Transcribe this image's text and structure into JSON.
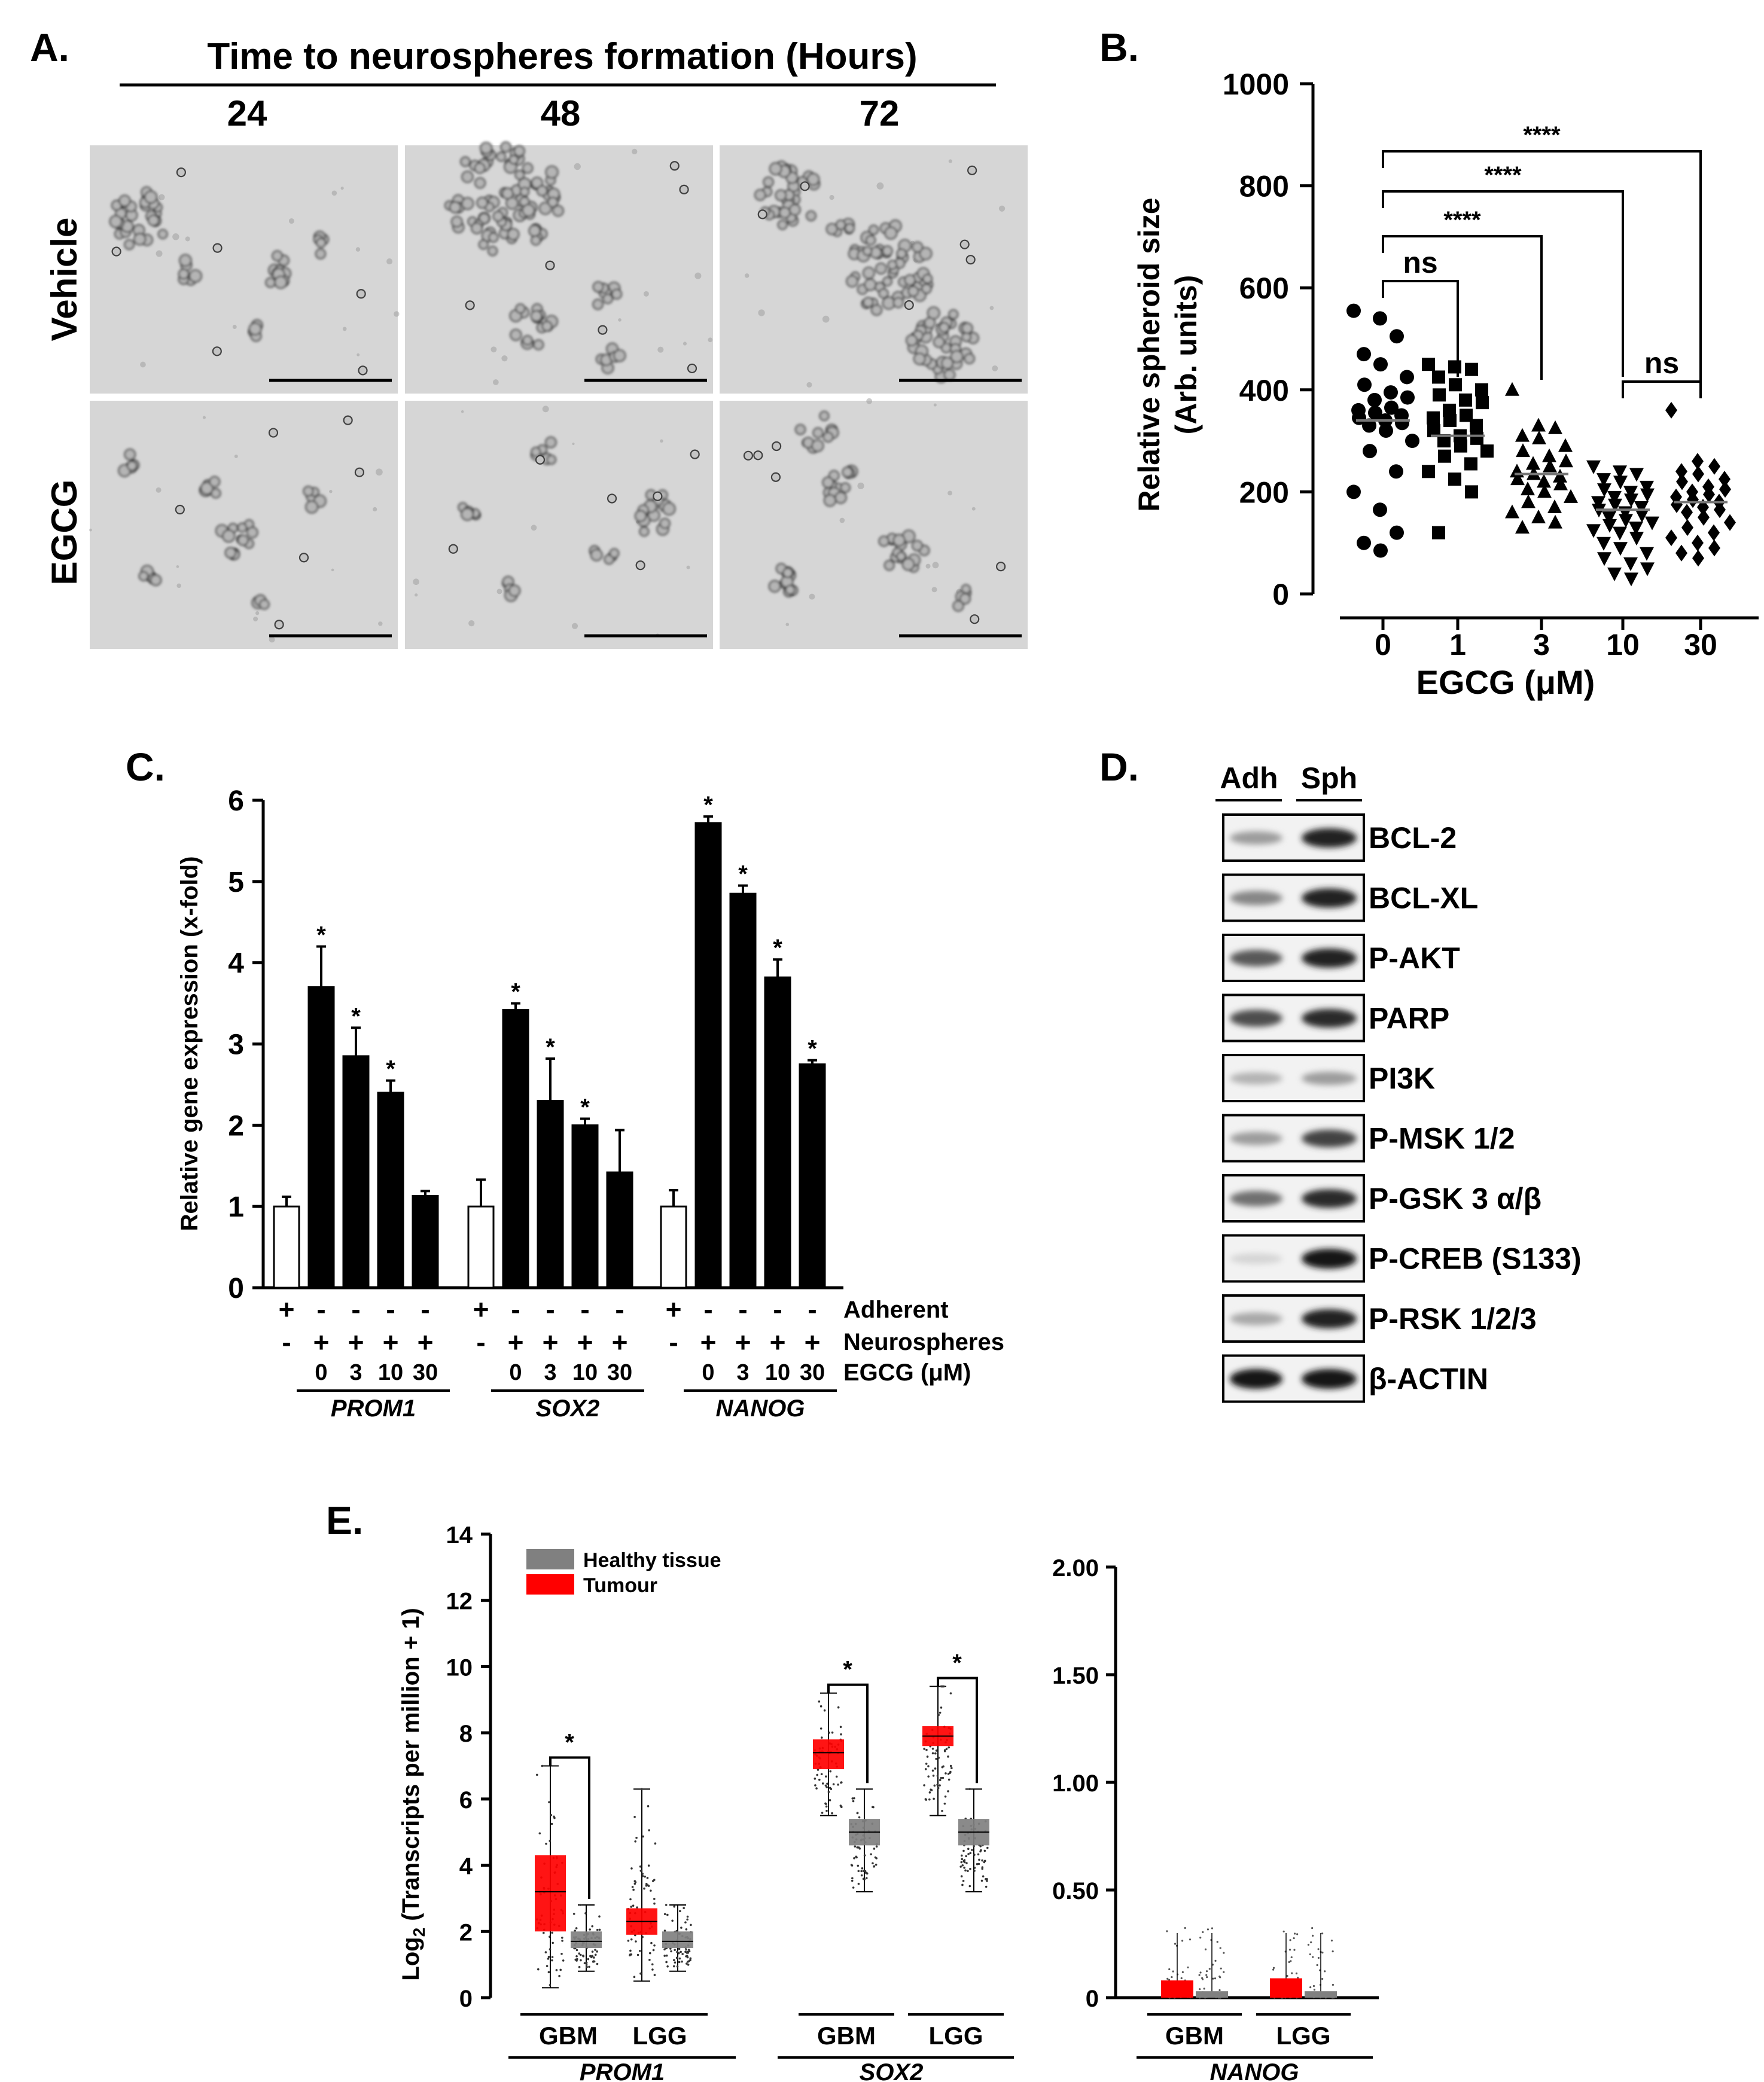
{
  "panelA": {
    "label": "A.",
    "title": "Time to neurospheres formation (Hours)",
    "timepoints": [
      "24",
      "48",
      "72"
    ],
    "rows": [
      "Vehicle",
      "EGCG"
    ]
  },
  "panelB": {
    "label": "B.",
    "chart_data": {
      "type": "scatter",
      "ylabel_line1": "Relative spheroid size",
      "ylabel_line2": "(Arb. units)",
      "xlabel": "EGCG (μM)",
      "ylim": [
        0,
        1000
      ],
      "yticks": [
        0,
        200,
        400,
        600,
        800,
        1000
      ],
      "categories": [
        "0",
        "1",
        "3",
        "10",
        "30"
      ],
      "markers": [
        "circle",
        "square",
        "triangle",
        "triangle-down",
        "diamond"
      ],
      "medians": [
        340,
        310,
        235,
        165,
        180
      ],
      "points": [
        [
          555,
          540,
          505,
          470,
          450,
          425,
          410,
          395,
          385,
          380,
          365,
          360,
          355,
          350,
          345,
          340,
          335,
          330,
          320,
          300,
          280,
          240,
          200,
          165,
          120,
          100,
          85
        ],
        [
          450,
          445,
          440,
          425,
          410,
          400,
          390,
          380,
          375,
          360,
          350,
          345,
          340,
          330,
          320,
          310,
          305,
          300,
          290,
          280,
          270,
          255,
          240,
          225,
          200,
          120
        ],
        [
          400,
          330,
          325,
          310,
          305,
          290,
          280,
          270,
          260,
          255,
          250,
          240,
          235,
          230,
          225,
          220,
          215,
          205,
          200,
          190,
          180,
          170,
          160,
          150,
          140,
          130
        ],
        [
          250,
          240,
          235,
          225,
          220,
          210,
          205,
          200,
          195,
          190,
          185,
          180,
          175,
          170,
          165,
          160,
          155,
          150,
          145,
          140,
          135,
          130,
          125,
          120,
          110,
          100,
          90,
          80,
          70,
          60,
          50,
          40,
          30
        ],
        [
          360,
          260,
          250,
          240,
          235,
          225,
          220,
          210,
          205,
          200,
          195,
          190,
          185,
          180,
          175,
          170,
          165,
          160,
          150,
          140,
          130,
          120,
          110,
          100,
          90,
          80,
          70
        ]
      ],
      "comparisons": [
        {
          "from": "0",
          "to": "1",
          "label": "ns"
        },
        {
          "from": "0",
          "to": "3",
          "label": "****"
        },
        {
          "from": "0",
          "to": "10",
          "label": "****"
        },
        {
          "from": "0",
          "to": "30",
          "label": "****"
        },
        {
          "from": "10",
          "to": "30",
          "label": "ns"
        }
      ]
    }
  },
  "panelC": {
    "label": "C.",
    "chart_data": {
      "type": "bar",
      "ylabel": "Relative gene expression (x-fold)",
      "ylim": [
        0,
        6
      ],
      "yticks": [
        0,
        1,
        2,
        3,
        4,
        5,
        6
      ],
      "row_labels": [
        "Adherent",
        "Neurospheres",
        "EGCG (μM)"
      ],
      "groups": [
        {
          "gene": "PROM1",
          "values": [
            1.0,
            3.7,
            2.85,
            2.4,
            1.13
          ],
          "errors": [
            0.12,
            0.5,
            0.35,
            0.15,
            0.06
          ],
          "sig": [
            "",
            "*",
            "*",
            "*",
            ""
          ]
        },
        {
          "gene": "SOX2",
          "values": [
            1.0,
            3.42,
            2.3,
            2.0,
            1.42
          ],
          "errors": [
            0.33,
            0.08,
            0.52,
            0.08,
            0.52
          ],
          "sig": [
            "",
            "*",
            "*",
            "*",
            ""
          ]
        },
        {
          "gene": "NANOG",
          "values": [
            1.0,
            5.72,
            4.85,
            3.82,
            2.75
          ],
          "errors": [
            0.2,
            0.08,
            0.1,
            0.22,
            0.05
          ],
          "sig": [
            "",
            "*",
            "*",
            "*",
            "*"
          ]
        }
      ],
      "adherent": [
        "+",
        "-",
        "-",
        "-",
        "-"
      ],
      "neurospheres": [
        "-",
        "+",
        "+",
        "+",
        "+"
      ],
      "egcg": [
        "",
        "0",
        "3",
        "10",
        "30"
      ]
    }
  },
  "panelD": {
    "label": "D.",
    "columns": [
      "Adh",
      "Sph"
    ],
    "bands": [
      {
        "name": "BCL-2",
        "adh": 0.35,
        "sph": 0.9
      },
      {
        "name": "BCL-XL",
        "adh": 0.45,
        "sph": 0.9
      },
      {
        "name": "P-AKT",
        "adh": 0.65,
        "sph": 0.9
      },
      {
        "name": "PARP",
        "adh": 0.7,
        "sph": 0.85
      },
      {
        "name": "PI3K",
        "adh": 0.25,
        "sph": 0.35
      },
      {
        "name": "P-MSK 1/2",
        "adh": 0.35,
        "sph": 0.75
      },
      {
        "name": "P-GSK 3 α/β",
        "adh": 0.55,
        "sph": 0.85
      },
      {
        "name": "P-CREB (S133)",
        "adh": 0.1,
        "sph": 0.95
      },
      {
        "name": "P-RSK 1/2/3",
        "adh": 0.3,
        "sph": 0.9
      },
      {
        "name": "β-ACTIN",
        "adh": 0.95,
        "sph": 0.95
      }
    ]
  },
  "panelE": {
    "label": "E.",
    "chart_data": {
      "type": "box",
      "ylabel": "Log2 (Transcripts per million + 1)",
      "ylabel_main": "Log",
      "ylabel_sub": "2",
      "ylabel_rest": " (Transcripts per million + 1)",
      "legend": [
        "Healthy tissue",
        "Tumour"
      ],
      "colors": {
        "tumour": "#ff0000",
        "healthy": "#808080"
      },
      "left": {
        "ylim": [
          0,
          14
        ],
        "yticks": [
          "0",
          "2",
          "4",
          "6",
          "8",
          "10",
          "12",
          "14"
        ],
        "genes": [
          "PROM1",
          "SOX2"
        ],
        "cohorts": [
          "GBM",
          "LGG",
          "GBM",
          "LGG"
        ],
        "boxes": [
          {
            "cohort": "GBM",
            "gene": "PROM1",
            "tumour": {
              "q1": 2.0,
              "median": 3.2,
              "q3": 4.3,
              "min": 0.3,
              "max": 7.0
            },
            "healthy": {
              "q1": 1.5,
              "median": 1.7,
              "q3": 2.0,
              "min": 0.8,
              "max": 2.8
            },
            "sig": "*"
          },
          {
            "cohort": "LGG",
            "gene": "PROM1",
            "tumour": {
              "q1": 1.9,
              "median": 2.3,
              "q3": 2.7,
              "min": 0.5,
              "max": 6.3
            },
            "healthy": {
              "q1": 1.5,
              "median": 1.7,
              "q3": 2.0,
              "min": 0.8,
              "max": 2.8
            },
            "sig": ""
          },
          {
            "cohort": "GBM",
            "gene": "SOX2",
            "tumour": {
              "q1": 6.9,
              "median": 7.4,
              "q3": 7.8,
              "min": 5.5,
              "max": 9.2
            },
            "healthy": {
              "q1": 4.6,
              "median": 5.0,
              "q3": 5.4,
              "min": 3.2,
              "max": 6.3
            },
            "sig": "*"
          },
          {
            "cohort": "LGG",
            "gene": "SOX2",
            "tumour": {
              "q1": 7.6,
              "median": 7.9,
              "q3": 8.2,
              "min": 5.5,
              "max": 9.4
            },
            "healthy": {
              "q1": 4.6,
              "median": 5.0,
              "q3": 5.4,
              "min": 3.2,
              "max": 6.3
            },
            "sig": "*"
          }
        ]
      },
      "right": {
        "ylim": [
          0,
          2
        ],
        "yticks": [
          "0",
          "0.50",
          "1.00",
          "1.50",
          "2.00"
        ],
        "gene": "NANOG",
        "cohorts": [
          "GBM",
          "LGG"
        ],
        "boxes": [
          {
            "cohort": "GBM",
            "tumour": 0.08,
            "healthy": 0.03
          },
          {
            "cohort": "LGG",
            "tumour": 0.09,
            "healthy": 0.03
          }
        ]
      }
    }
  }
}
